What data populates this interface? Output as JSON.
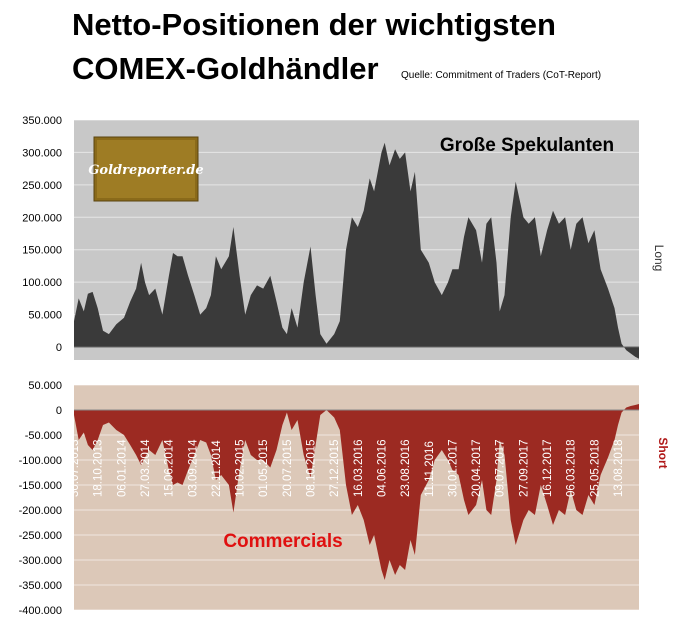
{
  "title_line1": "Netto-Positionen der wichtigsten",
  "title_line2": "COMEX-Goldhändler",
  "source": "Quelle: Commitment of Traders (CoT-Report)",
  "logo_text": "Goldreporter.de",
  "colors": {
    "spek_fill": "#3a3a3a",
    "spek_bg": "#c8c8c8",
    "comm_fill": "#9c2a22",
    "comm_bg": "#dcc8b8"
  },
  "chart_data": [
    {
      "type": "area",
      "label": "Große Spekulanten",
      "side_label": "Long",
      "yticks": [
        350000,
        300000,
        250000,
        200000,
        150000,
        100000,
        50000,
        0
      ],
      "ytick_labels": [
        "350.000",
        "300.000",
        "250.000",
        "200.000",
        "150.000",
        "100.000",
        "50.000",
        "0"
      ],
      "ylim": [
        -20000,
        350000
      ],
      "x_range": [
        "2013-07-30",
        "2018-10-23"
      ],
      "points": [
        [
          "2013-07-30",
          40000
        ],
        [
          "2013-08-15",
          75000
        ],
        [
          "2013-09-01",
          55000
        ],
        [
          "2013-09-15",
          82000
        ],
        [
          "2013-10-01",
          85000
        ],
        [
          "2013-10-18",
          60000
        ],
        [
          "2013-11-05",
          25000
        ],
        [
          "2013-11-25",
          20000
        ],
        [
          "2013-12-20",
          35000
        ],
        [
          "2014-01-15",
          45000
        ],
        [
          "2014-02-05",
          70000
        ],
        [
          "2014-02-25",
          90000
        ],
        [
          "2014-03-14",
          130000
        ],
        [
          "2014-03-27",
          100000
        ],
        [
          "2014-04-10",
          80000
        ],
        [
          "2014-05-01",
          90000
        ],
        [
          "2014-05-25",
          50000
        ],
        [
          "2014-06-16",
          110000
        ],
        [
          "2014-06-30",
          145000
        ],
        [
          "2014-07-15",
          140000
        ],
        [
          "2014-08-01",
          140000
        ],
        [
          "2014-08-20",
          110000
        ],
        [
          "2014-09-10",
          80000
        ],
        [
          "2014-09-30",
          50000
        ],
        [
          "2014-10-20",
          60000
        ],
        [
          "2014-11-05",
          80000
        ],
        [
          "2014-11-22",
          140000
        ],
        [
          "2014-12-10",
          120000
        ],
        [
          "2015-01-05",
          140000
        ],
        [
          "2015-01-20",
          185000
        ],
        [
          "2015-02-10",
          110000
        ],
        [
          "2015-03-01",
          50000
        ],
        [
          "2015-03-20",
          80000
        ],
        [
          "2015-04-10",
          95000
        ],
        [
          "2015-05-01",
          90000
        ],
        [
          "2015-05-25",
          110000
        ],
        [
          "2015-06-15",
          70000
        ],
        [
          "2015-07-05",
          30000
        ],
        [
          "2015-07-20",
          20000
        ],
        [
          "2015-08-05",
          60000
        ],
        [
          "2015-08-25",
          30000
        ],
        [
          "2015-09-15",
          100000
        ],
        [
          "2015-10-08",
          155000
        ],
        [
          "2015-10-25",
          80000
        ],
        [
          "2015-11-10",
          20000
        ],
        [
          "2015-12-01",
          5000
        ],
        [
          "2015-12-27",
          20000
        ],
        [
          "2016-01-15",
          40000
        ],
        [
          "2016-02-05",
          150000
        ],
        [
          "2016-02-25",
          200000
        ],
        [
          "2016-03-16",
          185000
        ],
        [
          "2016-04-05",
          210000
        ],
        [
          "2016-04-25",
          260000
        ],
        [
          "2016-05-10",
          240000
        ],
        [
          "2016-06-04",
          300000
        ],
        [
          "2016-06-15",
          315000
        ],
        [
          "2016-07-01",
          280000
        ],
        [
          "2016-07-20",
          305000
        ],
        [
          "2016-08-05",
          290000
        ],
        [
          "2016-08-23",
          300000
        ],
        [
          "2016-09-10",
          240000
        ],
        [
          "2016-09-25",
          270000
        ],
        [
          "2016-10-15",
          150000
        ],
        [
          "2016-11-11",
          130000
        ],
        [
          "2016-12-01",
          100000
        ],
        [
          "2016-12-25",
          80000
        ],
        [
          "2017-01-15",
          100000
        ],
        [
          "2017-01-30",
          120000
        ],
        [
          "2017-02-20",
          120000
        ],
        [
          "2017-03-10",
          170000
        ],
        [
          "2017-03-25",
          200000
        ],
        [
          "2017-04-20",
          180000
        ],
        [
          "2017-05-10",
          130000
        ],
        [
          "2017-05-25",
          190000
        ],
        [
          "2017-06-10",
          200000
        ],
        [
          "2017-06-28",
          130000
        ],
        [
          "2017-07-09",
          55000
        ],
        [
          "2017-07-25",
          80000
        ],
        [
          "2017-08-15",
          200000
        ],
        [
          "2017-09-01",
          255000
        ],
        [
          "2017-09-27",
          200000
        ],
        [
          "2017-10-15",
          190000
        ],
        [
          "2017-11-05",
          200000
        ],
        [
          "2017-11-25",
          140000
        ],
        [
          "2017-12-16",
          180000
        ],
        [
          "2018-01-05",
          210000
        ],
        [
          "2018-01-25",
          190000
        ],
        [
          "2018-02-15",
          200000
        ],
        [
          "2018-03-06",
          150000
        ],
        [
          "2018-03-25",
          190000
        ],
        [
          "2018-04-15",
          200000
        ],
        [
          "2018-05-05",
          160000
        ],
        [
          "2018-05-25",
          180000
        ],
        [
          "2018-06-15",
          120000
        ],
        [
          "2018-07-10",
          90000
        ],
        [
          "2018-08-01",
          60000
        ],
        [
          "2018-08-13",
          30000
        ],
        [
          "2018-08-25",
          5000
        ],
        [
          "2018-09-10",
          -5000
        ],
        [
          "2018-09-25",
          -10000
        ],
        [
          "2018-10-10",
          -15000
        ],
        [
          "2018-10-23",
          -18000
        ]
      ]
    },
    {
      "type": "area",
      "label": "Commercials",
      "side_label": "Short",
      "yticks": [
        50000,
        0,
        -50000,
        -100000,
        -150000,
        -200000,
        -250000,
        -300000,
        -350000,
        -400000
      ],
      "ytick_labels": [
        "50.000",
        "0",
        "-50.000",
        "-100.000",
        "-150.000",
        "-200.000",
        "-250.000",
        "-300.000",
        "-350.000",
        "-400.000"
      ],
      "ylim": [
        -400000,
        50000
      ],
      "x_range": [
        "2013-07-30",
        "2018-10-23"
      ],
      "xtick_labels": [
        "30.07.2013",
        "18.10.2013",
        "06.01.2014",
        "27.03.2014",
        "15.06.2014",
        "03.09.2014",
        "22.11.2014",
        "10.02.2015",
        "01.05.2015",
        "20.07.2015",
        "08.10.2015",
        "27.12.2015",
        "16.03.2016",
        "04.06.2016",
        "23.08.2016",
        "11.11.2016",
        "30.01.2017",
        "20.04.2017",
        "09.07.2017",
        "27.09.2017",
        "16.12.2017",
        "06.03.2018",
        "25.05.2018",
        "13.08.2018"
      ],
      "points": [
        [
          "2013-07-30",
          -10000
        ],
        [
          "2013-08-15",
          -60000
        ],
        [
          "2013-09-01",
          -45000
        ],
        [
          "2013-09-15",
          -70000
        ],
        [
          "2013-10-01",
          -80000
        ],
        [
          "2013-10-18",
          -60000
        ],
        [
          "2013-11-05",
          -30000
        ],
        [
          "2013-11-25",
          -25000
        ],
        [
          "2013-12-20",
          -40000
        ],
        [
          "2014-01-15",
          -50000
        ],
        [
          "2014-02-05",
          -70000
        ],
        [
          "2014-02-25",
          -90000
        ],
        [
          "2014-03-14",
          -110000
        ],
        [
          "2014-03-27",
          -95000
        ],
        [
          "2014-04-10",
          -80000
        ],
        [
          "2014-05-01",
          -90000
        ],
        [
          "2014-05-25",
          -60000
        ],
        [
          "2014-06-16",
          -120000
        ],
        [
          "2014-06-30",
          -150000
        ],
        [
          "2014-07-15",
          -145000
        ],
        [
          "2014-08-01",
          -150000
        ],
        [
          "2014-08-20",
          -120000
        ],
        [
          "2014-09-10",
          -90000
        ],
        [
          "2014-09-30",
          -60000
        ],
        [
          "2014-10-20",
          -65000
        ],
        [
          "2014-11-05",
          -90000
        ],
        [
          "2014-11-22",
          -140000
        ],
        [
          "2014-12-10",
          -130000
        ],
        [
          "2015-01-05",
          -150000
        ],
        [
          "2015-01-20",
          -205000
        ],
        [
          "2015-02-10",
          -120000
        ],
        [
          "2015-03-01",
          -60000
        ],
        [
          "2015-03-20",
          -90000
        ],
        [
          "2015-04-10",
          -100000
        ],
        [
          "2015-05-01",
          -100000
        ],
        [
          "2015-05-25",
          -115000
        ],
        [
          "2015-06-15",
          -80000
        ],
        [
          "2015-07-05",
          -30000
        ],
        [
          "2015-07-20",
          -5000
        ],
        [
          "2015-08-05",
          -40000
        ],
        [
          "2015-08-25",
          -20000
        ],
        [
          "2015-09-15",
          -90000
        ],
        [
          "2015-10-08",
          -135000
        ],
        [
          "2015-10-25",
          -70000
        ],
        [
          "2015-11-10",
          -10000
        ],
        [
          "2015-12-01",
          0
        ],
        [
          "2015-12-27",
          -15000
        ],
        [
          "2016-01-15",
          -40000
        ],
        [
          "2016-02-05",
          -150000
        ],
        [
          "2016-02-25",
          -210000
        ],
        [
          "2016-03-16",
          -190000
        ],
        [
          "2016-04-05",
          -220000
        ],
        [
          "2016-04-25",
          -270000
        ],
        [
          "2016-05-10",
          -250000
        ],
        [
          "2016-06-04",
          -320000
        ],
        [
          "2016-06-15",
          -340000
        ],
        [
          "2016-07-01",
          -300000
        ],
        [
          "2016-07-20",
          -330000
        ],
        [
          "2016-08-05",
          -310000
        ],
        [
          "2016-08-23",
          -320000
        ],
        [
          "2016-09-10",
          -260000
        ],
        [
          "2016-09-25",
          -290000
        ],
        [
          "2016-10-15",
          -170000
        ],
        [
          "2016-11-11",
          -140000
        ],
        [
          "2016-12-01",
          -100000
        ],
        [
          "2016-12-25",
          -80000
        ],
        [
          "2017-01-15",
          -100000
        ],
        [
          "2017-01-30",
          -120000
        ],
        [
          "2017-02-20",
          -130000
        ],
        [
          "2017-03-10",
          -180000
        ],
        [
          "2017-03-25",
          -210000
        ],
        [
          "2017-04-20",
          -190000
        ],
        [
          "2017-05-10",
          -140000
        ],
        [
          "2017-05-25",
          -200000
        ],
        [
          "2017-06-10",
          -210000
        ],
        [
          "2017-06-28",
          -140000
        ],
        [
          "2017-07-09",
          -60000
        ],
        [
          "2017-07-25",
          -90000
        ],
        [
          "2017-08-15",
          -220000
        ],
        [
          "2017-09-01",
          -270000
        ],
        [
          "2017-09-27",
          -220000
        ],
        [
          "2017-10-15",
          -200000
        ],
        [
          "2017-11-05",
          -210000
        ],
        [
          "2017-11-25",
          -150000
        ],
        [
          "2017-12-16",
          -190000
        ],
        [
          "2018-01-05",
          -230000
        ],
        [
          "2018-01-25",
          -200000
        ],
        [
          "2018-02-15",
          -210000
        ],
        [
          "2018-03-06",
          -160000
        ],
        [
          "2018-03-25",
          -200000
        ],
        [
          "2018-04-15",
          -210000
        ],
        [
          "2018-05-05",
          -170000
        ],
        [
          "2018-05-25",
          -190000
        ],
        [
          "2018-06-15",
          -130000
        ],
        [
          "2018-07-10",
          -95000
        ],
        [
          "2018-08-01",
          -60000
        ],
        [
          "2018-08-13",
          -30000
        ],
        [
          "2018-08-25",
          -5000
        ],
        [
          "2018-09-10",
          5000
        ],
        [
          "2018-09-25",
          8000
        ],
        [
          "2018-10-10",
          10000
        ],
        [
          "2018-10-23",
          12000
        ]
      ]
    }
  ]
}
